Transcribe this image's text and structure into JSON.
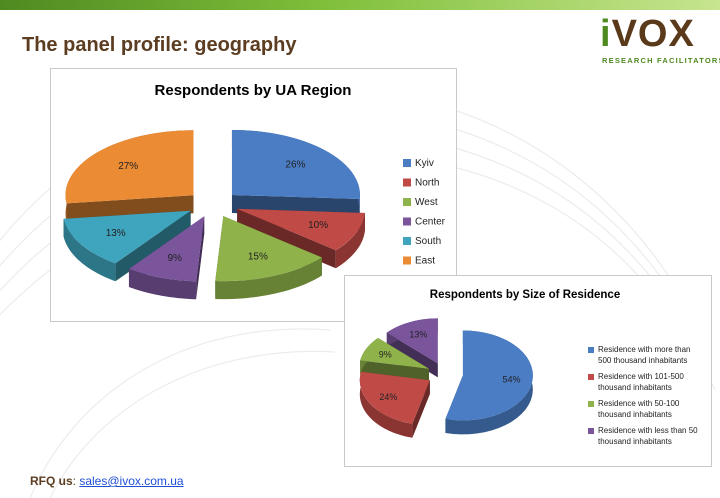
{
  "page": {
    "title": "The panel profile: geography",
    "logo": {
      "brand": "iVOX",
      "brand_first": "i",
      "brand_rest": "VOX",
      "tagline": "RESEARCH FACILITATORS"
    },
    "footer": {
      "label": "RFQ us",
      "separator": ": ",
      "email": "sales@ivox.com.ua"
    }
  },
  "chart_data": [
    {
      "type": "pie",
      "title": "Respondents by UA Region",
      "categories": [
        "Kyiv",
        "North",
        "West",
        "Center",
        "South",
        "East"
      ],
      "values": [
        26,
        10,
        15,
        9,
        13,
        27
      ],
      "value_labels": [
        "26%",
        "10%",
        "15%",
        "9%",
        "13%",
        "27%"
      ],
      "colors": [
        "#4a7dc4",
        "#c04a46",
        "#8fb34a",
        "#7a559c",
        "#3fa4bd",
        "#eb8c35"
      ],
      "exploded": true,
      "style": "3d",
      "legend": "right"
    },
    {
      "type": "pie",
      "title": "Respondents by Size of Residence",
      "categories": [
        "Residence with more than 500 thousand inhabitants",
        "Residence with 101-500 thousand inhabitants",
        "Residence with 50-100 thousand inhabitants",
        "Residence with less than 50 thousand inhabitants"
      ],
      "legend_lines": [
        [
          "Residence with more than",
          "500 thousand inhabitants"
        ],
        [
          "Residence with 101-500",
          "thousand inhabitants"
        ],
        [
          "Residence with 50-100",
          "thousand inhabitants"
        ],
        [
          "Residence with less than 50",
          "thousand inhabitants"
        ]
      ],
      "values": [
        54,
        24,
        9,
        13
      ],
      "value_labels": [
        "54%",
        "24%",
        "9%",
        "13%"
      ],
      "colors": [
        "#4a7dc4",
        "#c04a46",
        "#8fb34a",
        "#7a559c"
      ],
      "exploded": true,
      "style": "3d",
      "legend": "right"
    }
  ]
}
